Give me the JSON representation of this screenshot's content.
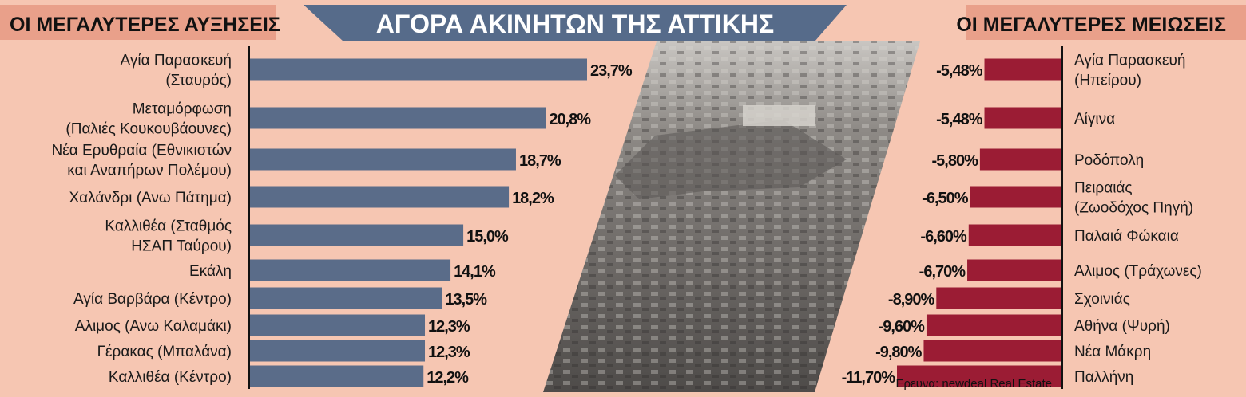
{
  "headers": {
    "left": "ΟΙ ΜΕΓΑΛΥΤΕΡΕΣ ΑΥΞΗΣΕΙΣ",
    "center": "ΑΓΟΡΑ ΑΚΙΝΗΤΩΝ ΤΗΣ ΑΤΤΙΚΗΣ",
    "right": "ΟΙ ΜΕΓΑΛΥΤΕΡΕΣ ΜΕΙΩΣΕΙΣ"
  },
  "source": "Ερευνα: newdeal Real Estate",
  "colors": {
    "background": "#f6c6b2",
    "header_band": "#e9a08a",
    "title_band": "#566b8a",
    "increase_bar": "#5a6c89",
    "decrease_bar": "#9b1c34",
    "photo": "#7d7a77"
  },
  "chart_data": [
    {
      "type": "bar",
      "orientation": "horizontal",
      "title": "ΟΙ ΜΕΓΑΛΥΤΕΡΕΣ ΑΥΞΗΣΕΙΣ",
      "unit": "%",
      "categories": [
        [
          "Αγία Παρασκευή",
          "(Σταυρός)"
        ],
        [
          "Μεταμόρφωση",
          "(Παλιές Κουκουβάουνες)"
        ],
        [
          "Νέα Ερυθραία (Εθνικιστών",
          "και Αναπήρων Πολέμου)"
        ],
        [
          "Χαλάνδρι (Ανω Πάτημα)"
        ],
        [
          "Καλλιθέα (Σταθμός",
          "ΗΣΑΠ Ταύρου)"
        ],
        [
          "Εκάλη"
        ],
        [
          "Αγία Βαρβάρα (Κέντρο)"
        ],
        [
          "Αλιμος (Ανω Καλαμάκι)"
        ],
        [
          "Γέρακας (Μπαλάνα)"
        ],
        [
          "Καλλιθέα (Κέντρο)"
        ]
      ],
      "values": [
        23.7,
        20.8,
        18.7,
        18.2,
        15.0,
        14.1,
        13.5,
        12.3,
        12.3,
        12.2
      ],
      "value_labels": [
        "23,7%",
        "20,8%",
        "18,7%",
        "18,2%",
        "15,0%",
        "14,1%",
        "13,5%",
        "12,3%",
        "12,3%",
        "12,2%"
      ]
    },
    {
      "type": "bar",
      "orientation": "horizontal",
      "title": "ΟΙ ΜΕΓΑΛΥΤΕΡΕΣ ΜΕΙΩΣΕΙΣ",
      "unit": "%",
      "categories": [
        [
          "Αγία Παρασκευή",
          "(Ηπείρου)"
        ],
        [
          "Αίγινα"
        ],
        [
          "Ροδόπολη"
        ],
        [
          "Πειραιάς",
          "(Ζωοδόχος Πηγή)"
        ],
        [
          "Παλαιά Φώκαια"
        ],
        [
          "Αλιμος (Τράχωνες)"
        ],
        [
          "Σχοινιάς"
        ],
        [
          "Αθήνα (Ψυρή)"
        ],
        [
          "Νέα Μάκρη"
        ],
        [
          "Παλλήνη"
        ]
      ],
      "values": [
        -5.48,
        -5.48,
        -5.8,
        -6.5,
        -6.6,
        -6.7,
        -8.9,
        -9.6,
        -9.8,
        -11.7
      ],
      "value_labels": [
        "-5,48%",
        "-5,48%",
        "-5,80%",
        "-6,50%",
        "-6,60%",
        "-6,70%",
        "-8,90%",
        "-9,60%",
        "-9,80%",
        "-11,70%"
      ]
    }
  ]
}
